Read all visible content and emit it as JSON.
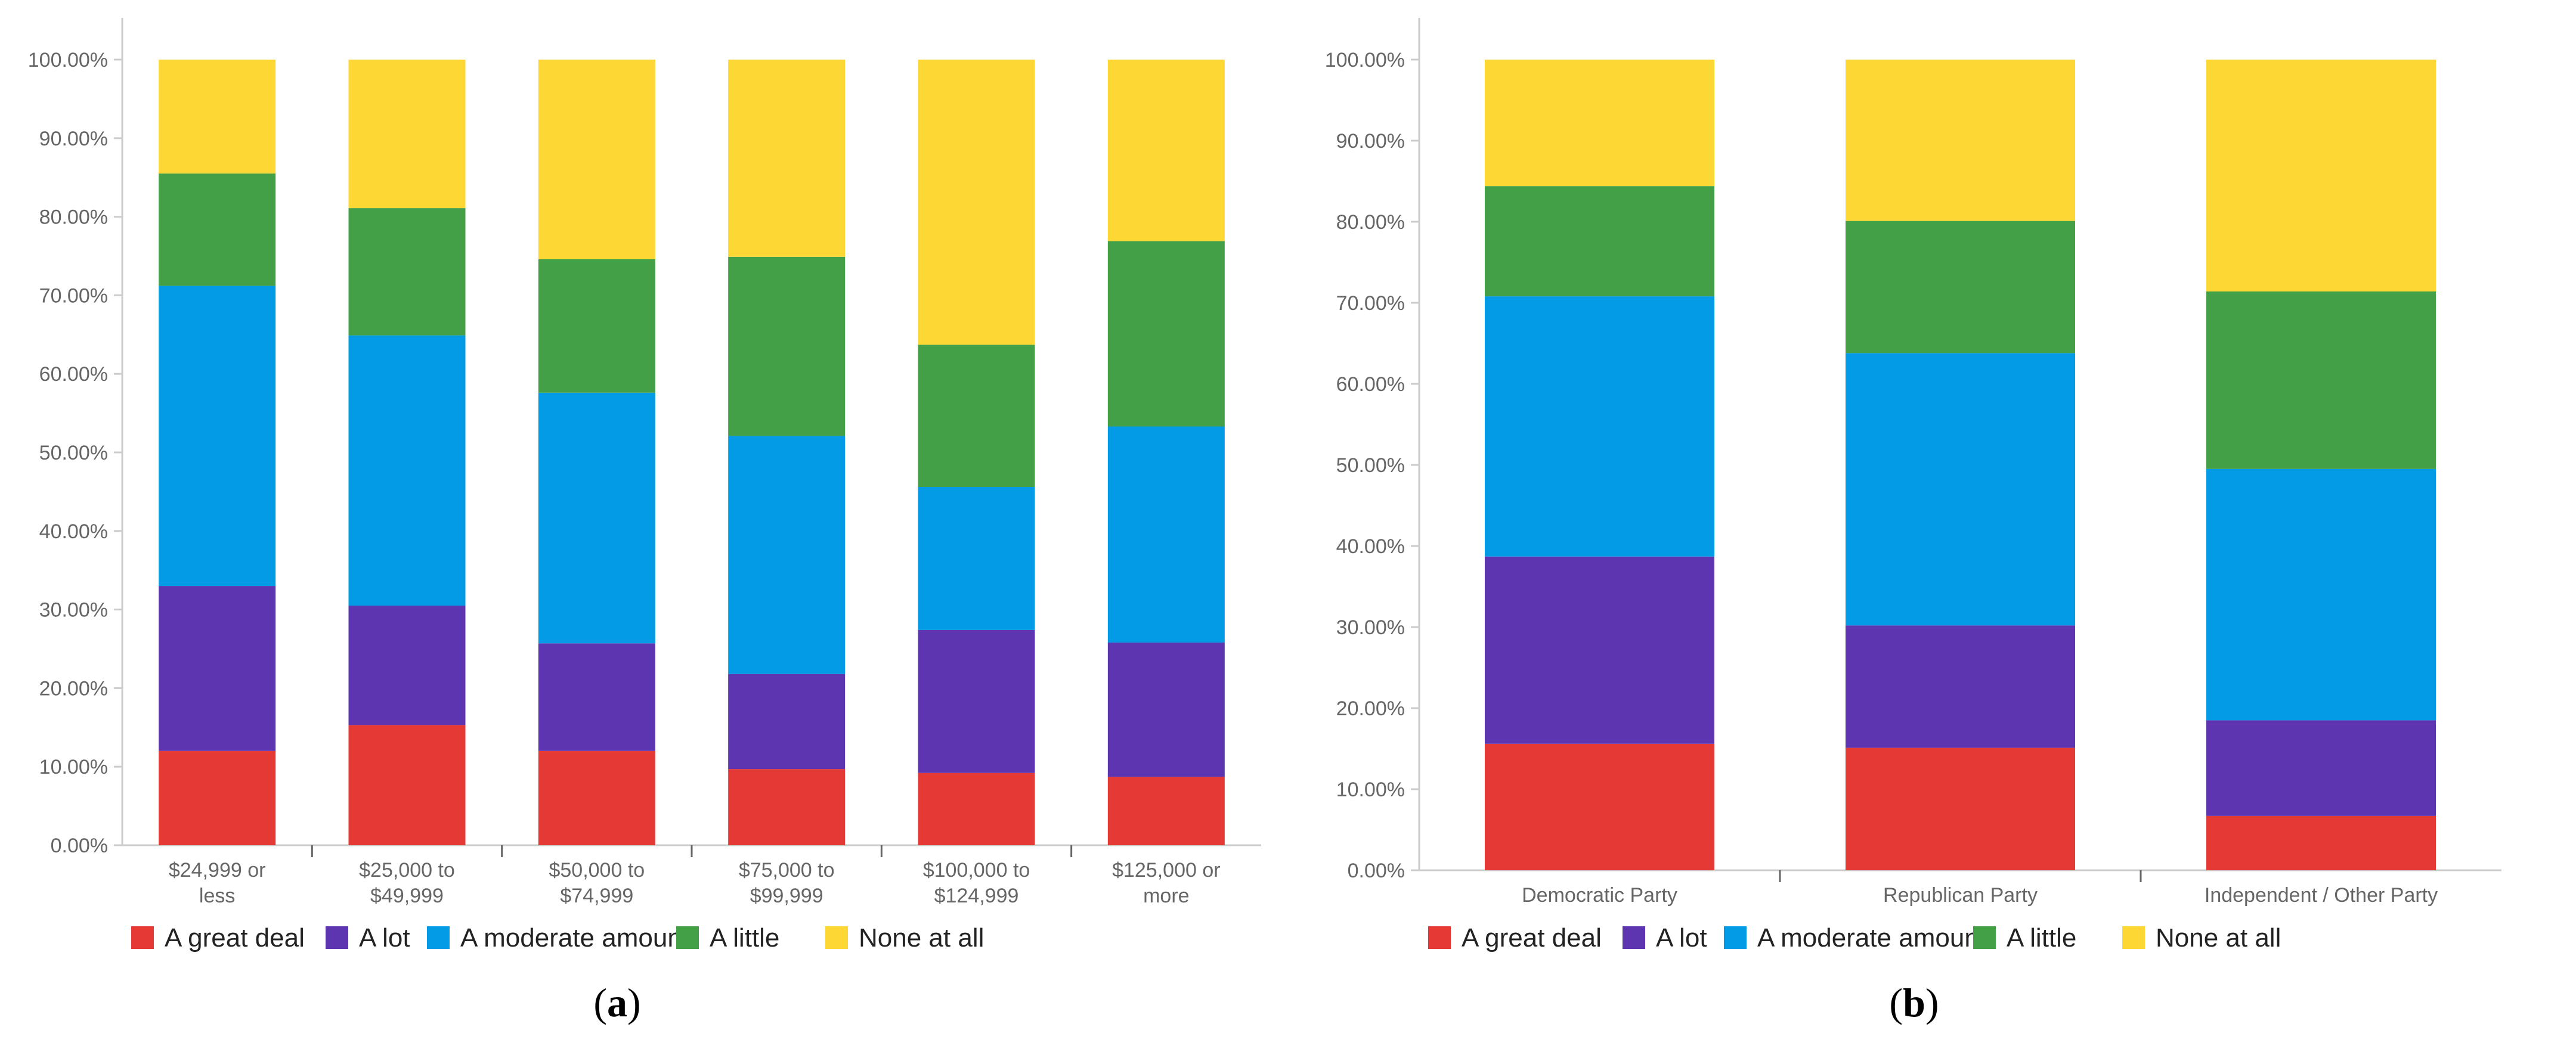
{
  "colors": {
    "a_great_deal": "#E53935",
    "a_lot": "#5E35B1",
    "a_moderate_amount": "#039BE5",
    "a_little": "#43A047",
    "none_at_all": "#FDD835"
  },
  "chart_data": [
    {
      "type": "bar",
      "stacked": true,
      "panel_label": "a",
      "categories": [
        "$24,999 or less",
        "$25,000 to $49,999",
        "$50,000 to $74,999",
        "$75,000 to $99,999",
        "$100,000 to $124,999",
        "$125,000 or more"
      ],
      "category_lines": [
        [
          "$24,999 or",
          "less"
        ],
        [
          "$25,000 to",
          "$49,999"
        ],
        [
          "$50,000 to",
          "$74,999"
        ],
        [
          "$75,000 to",
          "$99,999"
        ],
        [
          "$100,000 to",
          "$124,999"
        ],
        [
          "$125,000 or",
          "more"
        ]
      ],
      "ylim": [
        0,
        100
      ],
      "yticks": [
        "0.00%",
        "10.00%",
        "20.00%",
        "30.00%",
        "40.00%",
        "50.00%",
        "60.00%",
        "70.00%",
        "80.00%",
        "90.00%",
        "100.00%"
      ],
      "series": [
        {
          "name": "A great deal",
          "key": "a_great_deal",
          "values": [
            12.0,
            15.3,
            12.0,
            9.7,
            9.2,
            8.7
          ]
        },
        {
          "name": "A lot",
          "key": "a_lot",
          "values": [
            21.0,
            15.2,
            13.7,
            12.1,
            18.2,
            17.1
          ]
        },
        {
          "name": "A moderate amount",
          "key": "a_moderate_amount",
          "values": [
            38.2,
            34.4,
            31.9,
            30.3,
            18.2,
            27.5
          ]
        },
        {
          "name": "A little",
          "key": "a_little",
          "values": [
            14.3,
            16.2,
            17.0,
            22.8,
            18.1,
            23.6
          ]
        },
        {
          "name": "None at all",
          "key": "none_at_all",
          "values": [
            14.5,
            18.9,
            25.4,
            25.1,
            36.3,
            23.1
          ]
        }
      ],
      "legend": [
        "A great deal",
        "A lot",
        "A moderate amount",
        "A little",
        "None at all"
      ]
    },
    {
      "type": "bar",
      "stacked": true,
      "panel_label": "b",
      "categories": [
        "Democratic Party",
        "Republican Party",
        "Independent / Other Party"
      ],
      "category_lines": [
        [
          "Democratic Party"
        ],
        [
          "Republican Party"
        ],
        [
          "Independent / Other Party"
        ]
      ],
      "ylim": [
        0,
        100
      ],
      "yticks": [
        "0.00%",
        "10.00%",
        "20.00%",
        "30.00%",
        "40.00%",
        "50.00%",
        "60.00%",
        "70.00%",
        "80.00%",
        "90.00%",
        "100.00%"
      ],
      "series": [
        {
          "name": "A great deal",
          "key": "a_great_deal",
          "values": [
            15.6,
            15.1,
            6.7
          ]
        },
        {
          "name": "A lot",
          "key": "a_lot",
          "values": [
            23.1,
            15.1,
            11.8
          ]
        },
        {
          "name": "A moderate amount",
          "key": "a_moderate_amount",
          "values": [
            32.1,
            33.6,
            31.0
          ]
        },
        {
          "name": "A little",
          "key": "a_little",
          "values": [
            13.6,
            16.3,
            21.9
          ]
        },
        {
          "name": "None at all",
          "key": "none_at_all",
          "values": [
            15.6,
            19.9,
            28.6
          ]
        }
      ],
      "legend": [
        "A great deal",
        "A lot",
        "A moderate amount",
        "A little",
        "None at all"
      ]
    }
  ]
}
